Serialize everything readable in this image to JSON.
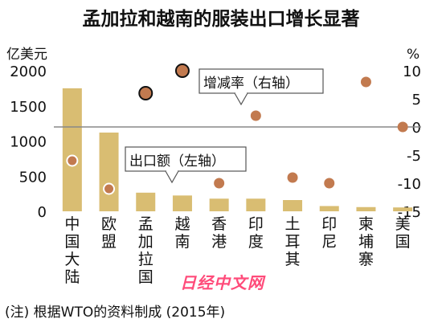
{
  "title": "孟加拉和越南的服装出口增长显著",
  "footnote": "(注) 根据WTO的资料制成 (2015年)",
  "logo_text": "日经中文网",
  "colors": {
    "bar": "#d9bd72",
    "point": "#c27a4f",
    "zero_line": "#888888",
    "text": "#111111"
  },
  "chart_data": {
    "type": "bar+scatter",
    "categories": [
      "中国大陆",
      "欧盟",
      "孟加拉国",
      "越南",
      "香港",
      "印度",
      "土耳其",
      "印尼",
      "柬埔寨",
      "美国"
    ],
    "series": [
      {
        "name": "出口额（左轴）",
        "axis": "left",
        "type": "bar",
        "values": [
          1750,
          1120,
          265,
          225,
          180,
          180,
          160,
          75,
          60,
          55
        ]
      },
      {
        "name": "增减率（右轴）",
        "axis": "right",
        "type": "scatter",
        "values": [
          -6,
          -11,
          6,
          10,
          -10,
          2,
          -9,
          -10,
          8,
          0
        ]
      }
    ],
    "left_axis": {
      "label": "亿美元",
      "ylim": [
        0,
        2000
      ],
      "ticks": [
        "0",
        "500",
        "1000",
        "1500",
        "2000"
      ]
    },
    "right_axis": {
      "label": "%",
      "ylim": [
        -15,
        10
      ],
      "ticks": [
        "-15",
        "-10",
        "-5",
        "0",
        "5",
        "10"
      ]
    },
    "grid": false
  }
}
